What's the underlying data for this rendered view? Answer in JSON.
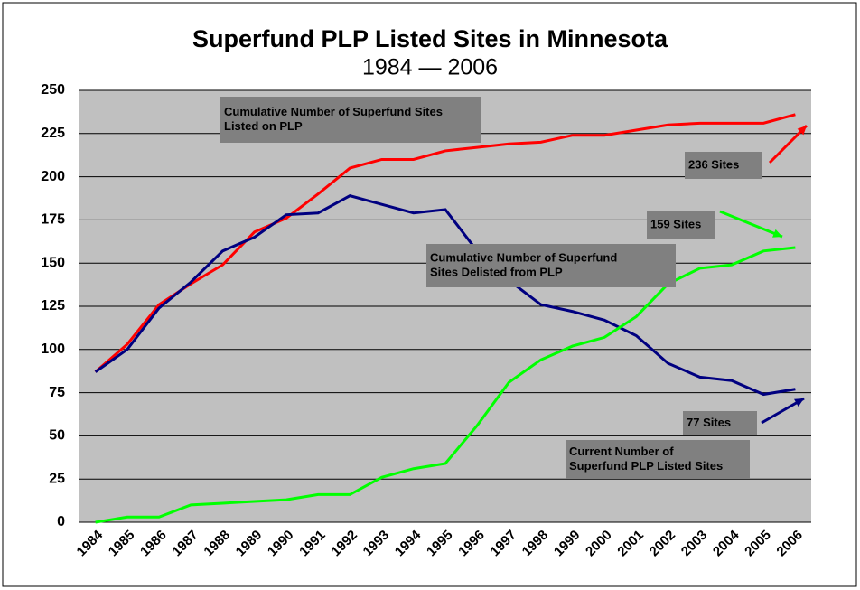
{
  "chart_data": {
    "type": "line",
    "title": "Superfund PLP Listed Sites in Minnesota",
    "subtitle": "1984 — 2006",
    "categories": [
      "1984",
      "1985",
      "1986",
      "1987",
      "1988",
      "1989",
      "1990",
      "1991",
      "1992",
      "1993",
      "1994",
      "1995",
      "1996",
      "1997",
      "1998",
      "1999",
      "2000",
      "2001",
      "2002",
      "2003",
      "2004",
      "2005",
      "2006"
    ],
    "series": [
      {
        "color": "#ff0000",
        "values": [
          87,
          103,
          126,
          138,
          149,
          168,
          176,
          190,
          205,
          210,
          210,
          215,
          217,
          219,
          220,
          224,
          224,
          227,
          230,
          231,
          231,
          231,
          236
        ]
      },
      {
        "color": "#000080",
        "values": [
          87,
          100,
          124,
          139,
          157,
          165,
          178,
          179,
          189,
          184,
          179,
          181,
          157,
          140,
          126,
          122,
          117,
          108,
          92,
          84,
          82,
          74,
          77
        ]
      },
      {
        "color": "#00ff00",
        "values": [
          0,
          3,
          3,
          10,
          11,
          12,
          13,
          16,
          16,
          26,
          31,
          34,
          56,
          81,
          94,
          102,
          107,
          119,
          138,
          147,
          149,
          157,
          159
        ]
      }
    ],
    "ylim": [
      0,
      250
    ],
    "yticks": [
      0,
      25,
      50,
      75,
      100,
      125,
      150,
      175,
      200,
      225,
      250
    ],
    "grid": true,
    "annotations": [
      {
        "lines": [
          "Cumulative Number of Superfund Sites",
          "Listed on PLP"
        ]
      },
      {
        "lines": [
          "Cumulative Number of Superfund",
          "Sites Delisted from  PLP"
        ]
      },
      {
        "lines": [
          "Current Number of",
          "Superfund PLP Listed Sites"
        ]
      },
      {
        "lines": [
          "236 Sites"
        ]
      },
      {
        "lines": [
          "159 Sites"
        ]
      },
      {
        "lines": [
          "77 Sites"
        ]
      }
    ]
  }
}
